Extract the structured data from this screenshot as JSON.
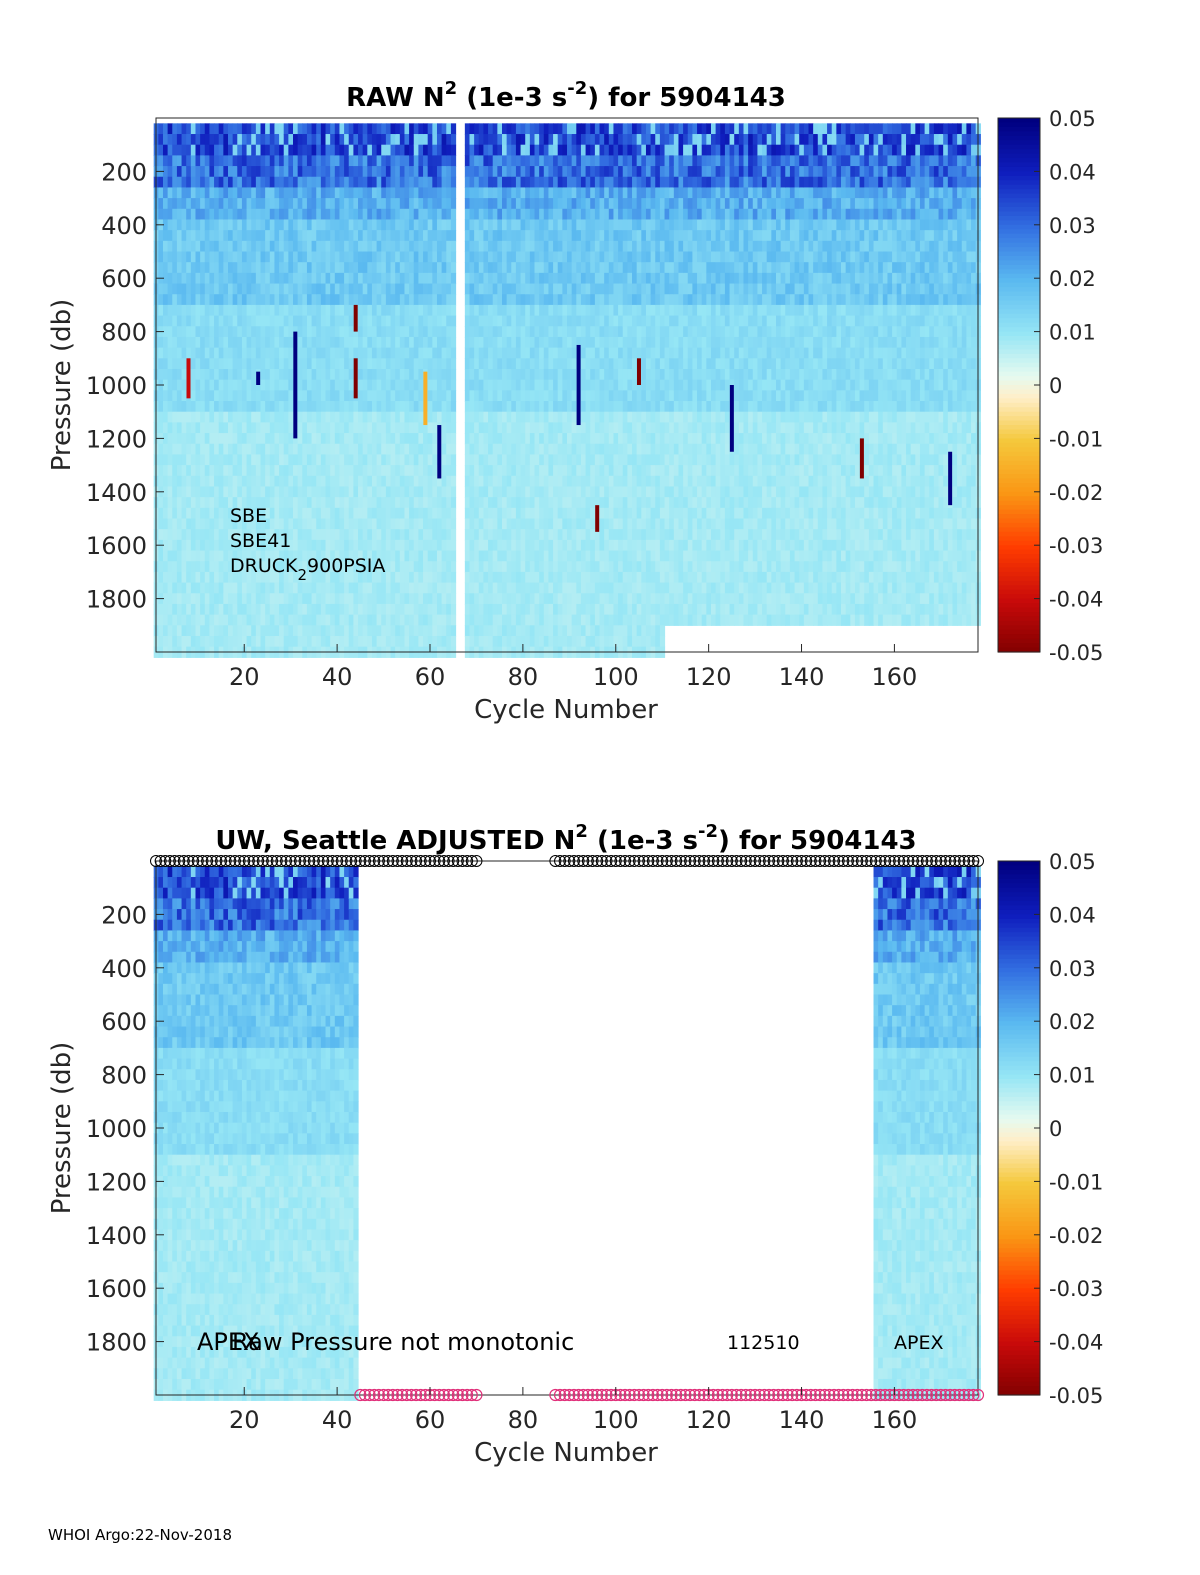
{
  "chart_data": [
    {
      "type": "heatmap",
      "title_main": "RAW N",
      "title_exp": "2",
      "title_unit_pre": " (1e-3 s",
      "title_unit_exp": "-2",
      "title_post": ") for 5904143",
      "xlabel": "Cycle Number",
      "ylabel": "Pressure (db)",
      "xlim": [
        1,
        178
      ],
      "ylim": [
        0,
        2000
      ],
      "y_reversed": true,
      "xticks": [
        20,
        40,
        60,
        80,
        100,
        120,
        140,
        160
      ],
      "yticks": [
        200,
        400,
        600,
        800,
        1000,
        1200,
        1400,
        1600,
        1800
      ],
      "colormap": "jet-diverging",
      "clim": [
        -0.05,
        0.05
      ],
      "colorbar_ticks": [
        "0.05",
        "0.04",
        "0.03",
        "0.02",
        "0.01",
        "0",
        "-0.01",
        "-0.02",
        "-0.03",
        "-0.04",
        "-0.05"
      ],
      "gap_cycles": [
        66,
        67
      ],
      "annotations": {
        "line1": "SBE",
        "line2": "SBE41",
        "line3_pre": "DRUCK",
        "line3_sub": "2",
        "line3_post": "900PSIA"
      },
      "anomaly_spikes": [
        {
          "cycle": 8,
          "p_range": [
            900,
            1050
          ],
          "value": -0.04
        },
        {
          "cycle": 23,
          "p_range": [
            950,
            1000
          ],
          "value": 0.05
        },
        {
          "cycle": 31,
          "p_range": [
            800,
            1200
          ],
          "value": 0.05
        },
        {
          "cycle": 44,
          "p_range": [
            700,
            800
          ],
          "value": -0.05
        },
        {
          "cycle": 44,
          "p_range": [
            900,
            1050
          ],
          "value": -0.05
        },
        {
          "cycle": 59,
          "p_range": [
            950,
            1150
          ],
          "value": -0.015
        },
        {
          "cycle": 62,
          "p_range": [
            1150,
            1350
          ],
          "value": 0.05
        },
        {
          "cycle": 92,
          "p_range": [
            850,
            1150
          ],
          "value": 0.05
        },
        {
          "cycle": 96,
          "p_range": [
            1450,
            1550
          ],
          "value": -0.05
        },
        {
          "cycle": 105,
          "p_range": [
            900,
            1000
          ],
          "value": -0.05
        },
        {
          "cycle": 125,
          "p_range": [
            1000,
            1250
          ],
          "value": 0.05
        },
        {
          "cycle": 153,
          "p_range": [
            1200,
            1350
          ],
          "value": -0.05
        },
        {
          "cycle": 172,
          "p_range": [
            1250,
            1450
          ],
          "value": 0.05
        }
      ]
    },
    {
      "type": "heatmap",
      "title_main": "UW, Seattle  ADJUSTED N",
      "title_exp": "2",
      "title_unit_pre": " (1e-3 s",
      "title_unit_exp": "-2",
      "title_post": ") for 5904143",
      "xlabel": "Cycle Number",
      "ylabel": "Pressure (db)",
      "xlim": [
        1,
        178
      ],
      "ylim": [
        0,
        2000
      ],
      "y_reversed": true,
      "xticks": [
        20,
        40,
        60,
        80,
        100,
        120,
        140,
        160
      ],
      "yticks": [
        200,
        400,
        600,
        800,
        1000,
        1200,
        1400,
        1600,
        1800
      ],
      "colormap": "jet-diverging",
      "clim": [
        -0.05,
        0.05
      ],
      "colorbar_ticks": [
        "0.05",
        "0.04",
        "0.03",
        "0.02",
        "0.01",
        "0",
        "-0.01",
        "-0.02",
        "-0.03",
        "-0.04",
        "-0.05"
      ],
      "data_cycles": [
        [
          1,
          44
        ],
        [
          156,
          178
        ]
      ],
      "top_marker_cycles": [
        [
          1,
          70
        ],
        [
          87,
          178
        ]
      ],
      "bottom_marker_cycles": [
        [
          45,
          70
        ],
        [
          87,
          178
        ]
      ],
      "top_marker_color": "#000000",
      "bottom_marker_color": "#e0307a",
      "annotations": {
        "apex_left": "APEX",
        "raw_pressure": "Raw Pressure not monotonic",
        "code": "112510",
        "apex_right": "APEX"
      }
    }
  ],
  "footer": "WHOI Argo:22-Nov-2018"
}
